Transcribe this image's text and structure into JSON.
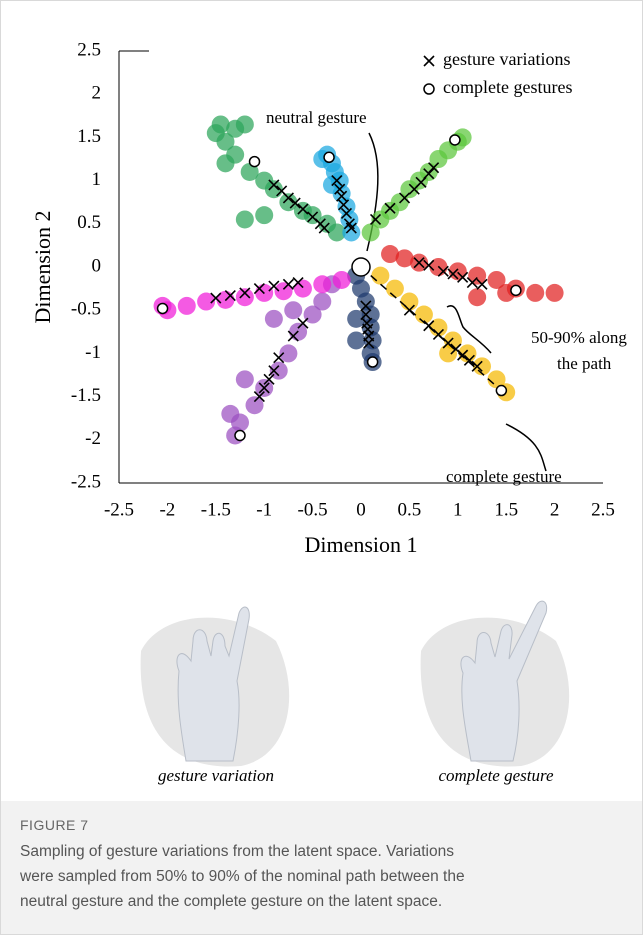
{
  "chart_data": {
    "type": "scatter",
    "x_label": "Dimension 1",
    "y_label": "Dimension 2",
    "xlim": [
      -2.5,
      2.5
    ],
    "ylim": [
      -2.5,
      2.5
    ],
    "xticks": [
      -2.5,
      -2,
      -1.5,
      -1,
      -0.5,
      0,
      0.5,
      1,
      1.5,
      2,
      2.5
    ],
    "yticks": [
      -2.5,
      -2,
      -1.5,
      -1,
      -0.5,
      0,
      0.5,
      1,
      1.5,
      2,
      2.5
    ],
    "legend": "upper right",
    "clusters": [
      {
        "color": "#2ca55a",
        "x": [
          -0.25,
          -0.35,
          -0.5,
          -0.6,
          -0.75,
          -0.9,
          -1.0,
          -1.15,
          -1.3,
          -1.4,
          -1.3,
          -1.45,
          -1.2,
          -1.0,
          -1.2,
          -1.4,
          -1.5
        ],
        "y": [
          0.4,
          0.5,
          0.6,
          0.65,
          0.75,
          0.9,
          1.0,
          1.1,
          1.3,
          1.45,
          1.6,
          1.65,
          1.65,
          0.6,
          0.55,
          1.2,
          1.55
        ]
      },
      {
        "color": "#1aa7e0",
        "x": [
          -0.1,
          -0.12,
          -0.15,
          -0.2,
          -0.22,
          -0.27,
          -0.3,
          -0.35,
          -0.4,
          -0.3
        ],
        "y": [
          0.4,
          0.55,
          0.7,
          0.85,
          1.0,
          1.1,
          1.2,
          1.3,
          1.25,
          0.95
        ]
      },
      {
        "color": "#5cc63c",
        "x": [
          0.1,
          0.2,
          0.3,
          0.4,
          0.5,
          0.6,
          0.7,
          0.8,
          0.9,
          1.0,
          1.05
        ],
        "y": [
          0.4,
          0.55,
          0.65,
          0.75,
          0.9,
          1.0,
          1.1,
          1.25,
          1.35,
          1.45,
          1.5
        ]
      },
      {
        "color": "#e02020",
        "x": [
          0.3,
          0.45,
          0.6,
          0.8,
          1.0,
          1.2,
          1.4,
          1.6,
          1.8,
          2.0,
          1.2,
          1.5
        ],
        "y": [
          0.15,
          0.1,
          0.05,
          0.0,
          -0.05,
          -0.1,
          -0.15,
          -0.25,
          -0.3,
          -0.3,
          -0.35,
          -0.3
        ]
      },
      {
        "color": "#f5b800",
        "x": [
          0.2,
          0.35,
          0.5,
          0.65,
          0.8,
          0.95,
          1.1,
          1.25,
          1.4,
          1.5,
          0.9
        ],
        "y": [
          -0.1,
          -0.25,
          -0.4,
          -0.55,
          -0.7,
          -0.85,
          -1.0,
          -1.15,
          -1.3,
          -1.45,
          -1.0
        ]
      },
      {
        "color": "#1f3a6e",
        "x": [
          -0.05,
          0.0,
          0.05,
          0.1,
          0.1,
          0.12,
          0.1,
          0.12,
          -0.05,
          -0.05
        ],
        "y": [
          -0.1,
          -0.25,
          -0.4,
          -0.55,
          -0.7,
          -0.85,
          -1.0,
          -1.1,
          -0.6,
          -0.85
        ]
      },
      {
        "color": "#9b4fc0",
        "x": [
          -0.3,
          -0.4,
          -0.5,
          -0.65,
          -0.75,
          -0.85,
          -1.0,
          -1.1,
          -1.25,
          -1.3,
          -1.2,
          -0.9,
          -0.7,
          -1.35
        ],
        "y": [
          -0.2,
          -0.4,
          -0.55,
          -0.75,
          -1.0,
          -1.2,
          -1.4,
          -1.6,
          -1.8,
          -1.95,
          -1.3,
          -0.6,
          -0.5,
          -1.7
        ]
      },
      {
        "color": "#f01ad8",
        "x": [
          -0.2,
          -0.4,
          -0.6,
          -0.8,
          -1.0,
          -1.2,
          -1.4,
          -1.6,
          -1.8,
          -2.0,
          -2.05
        ],
        "y": [
          -0.15,
          -0.2,
          -0.25,
          -0.28,
          -0.3,
          -0.35,
          -0.38,
          -0.4,
          -0.45,
          -0.5,
          -0.45
        ]
      }
    ],
    "series": [
      {
        "name": "gesture variations",
        "color": "#000000",
        "marker": "x",
        "x": [
          -0.9,
          -0.82,
          -0.75,
          -0.68,
          -0.6,
          -0.5,
          -0.42,
          -0.38,
          -0.25,
          -0.22,
          -0.2,
          -0.18,
          -0.15,
          -0.12,
          -0.1,
          0.15,
          0.3,
          0.45,
          0.55,
          0.62,
          0.7,
          0.75,
          0.6,
          0.7,
          0.85,
          0.95,
          1.05,
          1.15,
          1.25,
          0.5,
          0.7,
          0.8,
          0.9,
          0.98,
          1.05,
          1.12,
          1.2,
          0.05,
          0.05,
          0.06,
          0.07,
          0.08,
          0.08,
          -0.6,
          -0.7,
          -0.85,
          -0.9,
          -0.95,
          -1.0,
          -1.05,
          -0.65,
          -0.75,
          -0.9,
          -1.05,
          -1.2,
          -1.35,
          -1.5
        ],
        "y": [
          0.95,
          0.88,
          0.8,
          0.74,
          0.67,
          0.58,
          0.5,
          0.45,
          1.0,
          0.9,
          0.82,
          0.72,
          0.62,
          0.5,
          0.45,
          0.55,
          0.68,
          0.8,
          0.9,
          0.98,
          1.08,
          1.15,
          0.05,
          0.02,
          -0.05,
          -0.08,
          -0.12,
          -0.18,
          -0.2,
          -0.5,
          -0.68,
          -0.78,
          -0.88,
          -0.95,
          -1.02,
          -1.08,
          -1.15,
          -0.45,
          -0.55,
          -0.65,
          -0.72,
          -0.8,
          -0.88,
          -0.65,
          -0.8,
          -1.05,
          -1.2,
          -1.3,
          -1.4,
          -1.5,
          -0.18,
          -0.2,
          -0.22,
          -0.25,
          -0.3,
          -0.33,
          -0.36
        ]
      },
      {
        "name": "complete gestures",
        "color": "#ffffff",
        "marker": "o",
        "x": [
          -1.1,
          -0.33,
          0.97,
          1.6,
          1.45,
          0.12,
          -1.25,
          -2.05
        ],
        "y": [
          1.22,
          1.27,
          1.47,
          -0.27,
          -1.43,
          -1.1,
          -1.95,
          -0.48
        ]
      }
    ],
    "neutral": {
      "x": 0,
      "y": 0
    },
    "annotations": [
      "neutral gesture",
      "50-90% along",
      "the path",
      "complete gesture"
    ]
  },
  "images": [
    "gesture variation",
    "complete gesture"
  ],
  "figure": {
    "label": "FIGURE 7",
    "caption": [
      "Sampling of gesture variations from the latent space. Variations",
      "were sampled from 50% to 90% of the nominal path between the",
      "neutral gesture and the complete gesture on the latent space."
    ]
  }
}
